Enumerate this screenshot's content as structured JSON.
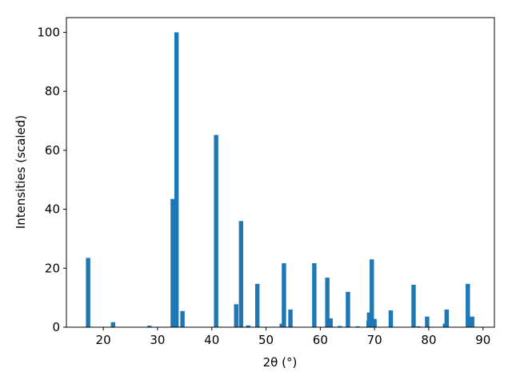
{
  "chart_data": {
    "type": "bar",
    "xlabel": "2θ (°)",
    "ylabel": "Intensities (scaled)",
    "x": [
      17.2,
      21.8,
      28.5,
      32.8,
      33.5,
      34.6,
      40.8,
      44.5,
      45.4,
      46.7,
      48.4,
      52.9,
      53.3,
      54.5,
      58.9,
      61.3,
      61.9,
      63.6,
      65.1,
      66.9,
      68.9,
      69.0,
      69.5,
      70.0,
      73.0,
      77.2,
      78.1,
      79.7,
      83.0,
      83.3,
      87.2,
      88.0
    ],
    "values": [
      23.5,
      1.7,
      0.5,
      43.5,
      100,
      5.5,
      65.2,
      7.8,
      36,
      0.6,
      14.7,
      1.2,
      21.7,
      6,
      21.7,
      16.8,
      3,
      0.4,
      12,
      0.3,
      2.2,
      5,
      23,
      2.8,
      5.7,
      14.4,
      0.3,
      3.6,
      1.2,
      6,
      14.7,
      3.6
    ],
    "color": "#1f77b4",
    "xlim": [
      13.2,
      92.1
    ],
    "ylim": [
      0,
      105
    ],
    "xticks": [
      20,
      30,
      40,
      50,
      60,
      70,
      80,
      90
    ],
    "yticks": [
      0,
      20,
      40,
      60,
      80,
      100
    ],
    "grid": false
  }
}
